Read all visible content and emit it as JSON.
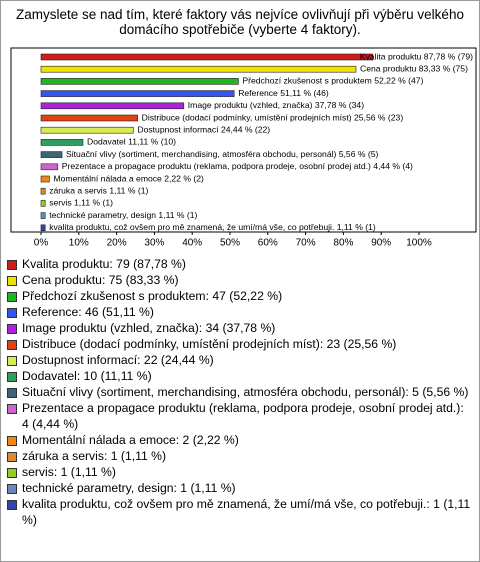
{
  "chart_data": {
    "type": "hbar",
    "title": "Zamyslete se nad tím, které faktory vás nejvíce ovlivňují při výběru velkého domácího spotřebiče (vyberte 4 faktory).",
    "categories": [
      "Kvalita produktu",
      "Cena produktu",
      "Předchozí zkušenost s produktem",
      "Reference",
      "Image produktu (vzhled, značka)",
      "Distribuce (dodací podmínky, umístění prodejních míst)",
      "Dostupnost informací",
      "Dodavatel",
      "Situační vlivy (sortiment, merchandising, atmosféra obchodu, personál)",
      "Prezentace a propagace produktu (reklama, podpora prodeje, osobní prodej atd.)",
      "Momentální nálada a emoce",
      "záruka a servis",
      "servis",
      "technické parametry, design",
      "kvalita produktu, což ovšem pro mě znamená, že umí/má vše, co potřebuji."
    ],
    "values": [
      87.78,
      83.33,
      52.22,
      51.11,
      37.78,
      25.56,
      24.44,
      11.11,
      5.56,
      4.44,
      2.22,
      1.11,
      1.11,
      1.11,
      1.11
    ],
    "value_labels": [
      "Kvalita produktu 87,78 % (79)",
      "Cena produktu 83,33 % (75)",
      "Předchozí zkušenost s produktem 52,22 % (47)",
      "Reference 51,11 % (46)",
      "Image produktu (vzhled, značka) 37,78 % (34)",
      "Distribuce (dodací podmínky, umístění prodejních míst) 25,56 % (23)",
      "Dostupnost informací 24,44 % (22)",
      "Dodavatel 11,11 % (10)",
      "Situační vlivy (sortiment, merchandising, atmosféra obchodu, personál) 5,56 % (5)",
      "Prezentace a propagace produktu (reklama, podpora prodeje, osobní prodej atd.) 4,44 % (4)",
      "Momentální nálada a emoce 2,22 % (2)",
      "záruka a servis 1,11 % (1)",
      "servis 1,11 % (1)",
      "technické parametry, design 1,11 % (1)",
      "kvalita produktu, což ovšem pro mě znamená, že umí/má vše, co potřebuji. 1,11 % (1)"
    ],
    "legend_entries": [
      "Kvalita produktu: 79 (87,78 %)",
      "Cena produktu: 75 (83,33 %)",
      "Předchozí zkušenost s produktem: 47 (52,22 %)",
      "Reference: 46 (51,11 %)",
      "Image produktu (vzhled, značka): 34 (37,78 %)",
      "Distribuce (dodací podmínky, umístění prodejních míst): 23 (25,56 %)",
      "Dostupnost informací: 22 (24,44 %)",
      "Dodavatel: 10 (11,11 %)",
      "Situační vlivy (sortiment, merchandising, atmosféra obchodu, personál): 5 (5,56 %)",
      "Prezentace a propagace produktu (reklama, podpora prodeje, osobní prodej atd.): 4 (4,44 %)",
      "Momentální nálada a emoce: 2 (2,22 %)",
      "záruka a servis: 1 (1,11 %)",
      "servis: 1 (1,11 %)",
      "technické parametry, design: 1 (1,11 %)",
      "kvalita produktu, což ovšem pro mě znamená, že umí/má vše, co potřebuji.: 1 (1,11 %)"
    ],
    "colors": [
      "#d11a1a",
      "#f2e200",
      "#22b522",
      "#3355ee",
      "#aa22dd",
      "#dd4411",
      "#d8ea55",
      "#2e9e60",
      "#3a6677",
      "#cc66cc",
      "#ee8811",
      "#d98a33",
      "#99cc22",
      "#6a88bb",
      "#3344aa"
    ],
    "xlim": [
      0,
      100
    ],
    "xticks": [
      {
        "value": 0,
        "label": "0%"
      },
      {
        "value": 10,
        "label": "10%"
      },
      {
        "value": 20,
        "label": "20%"
      },
      {
        "value": 30,
        "label": "30%"
      },
      {
        "value": 40,
        "label": "40%"
      },
      {
        "value": 50,
        "label": "50%"
      },
      {
        "value": 60,
        "label": "60%"
      },
      {
        "value": 70,
        "label": "70%"
      },
      {
        "value": 80,
        "label": "80%"
      },
      {
        "value": 90,
        "label": "90%"
      },
      {
        "value": 100,
        "label": "100%"
      }
    ]
  }
}
